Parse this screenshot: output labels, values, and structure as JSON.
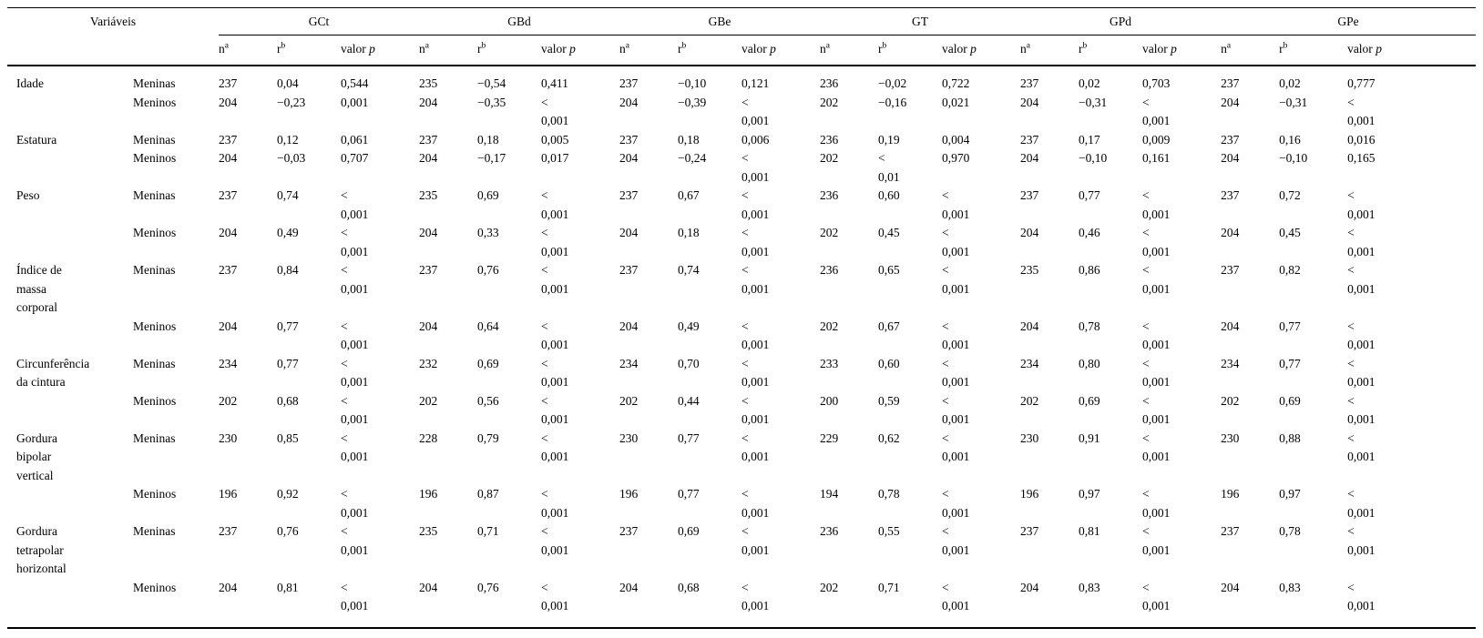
{
  "page": {
    "background_color": "#ffffff",
    "text_color": "#000000",
    "rule_color": "#000000"
  },
  "table": {
    "variables_header": "Variáveis",
    "groups": [
      "GCt",
      "GBd",
      "GBe",
      "GT",
      "GPd",
      "GPe"
    ],
    "subheaders": {
      "n_base": "n",
      "n_sup": "a",
      "r_base": "r",
      "r_sup": "b",
      "p_prefix": "valor",
      "p_symbol": "p"
    },
    "sex_labels": [
      "Meninas",
      "Meninos"
    ],
    "rows": [
      {
        "variable": "Idade",
        "sex": "Meninas",
        "cells": [
          "237",
          "0,04",
          "0,544",
          "235",
          "−0,54",
          "0,411",
          "237",
          "−0,10",
          "0,121",
          "236",
          "−0,02",
          "0,722",
          "237",
          "0,02",
          "0,703",
          "237",
          "0,02",
          "0,777"
        ]
      },
      {
        "variable": "",
        "sex": "Meninos",
        "cells": [
          "204",
          "−0,23",
          "0,001",
          "204",
          "−0,35",
          "<\n0,001",
          "204",
          "−0,39",
          "<\n0,001",
          "202",
          "−0,16",
          "0,021",
          "204",
          "−0,31",
          "<\n0,001",
          "204",
          "−0,31",
          "<\n0,001"
        ]
      },
      {
        "variable": "Estatura",
        "sex": "Meninas",
        "cells": [
          "237",
          "0,12",
          "0,061",
          "237",
          "0,18",
          "0,005",
          "237",
          "0,18",
          "0,006",
          "236",
          "0,19",
          "0,004",
          "237",
          "0,17",
          "0,009",
          "237",
          "0,16",
          "0,016"
        ]
      },
      {
        "variable": "",
        "sex": "Meninos",
        "cells": [
          "204",
          "−0,03",
          "0,707",
          "204",
          "−0,17",
          "0,017",
          "204",
          "−0,24",
          "<\n0,001",
          "202",
          "<\n0,01",
          "0,970",
          "204",
          "−0,10",
          "0,161",
          "204",
          "−0,10",
          "0,165"
        ]
      },
      {
        "variable": "Peso",
        "sex": "Meninas",
        "cells": [
          "237",
          "0,74",
          "<\n0,001",
          "235",
          "0,69",
          "<\n0,001",
          "237",
          "0,67",
          "<\n0,001",
          "236",
          "0,60",
          "<\n0,001",
          "237",
          "0,77",
          "<\n0,001",
          "237",
          "0,72",
          "<\n0,001"
        ]
      },
      {
        "variable": "",
        "sex": "Meninos",
        "cells": [
          "204",
          "0,49",
          "<\n0,001",
          "204",
          "0,33",
          "<\n0,001",
          "204",
          "0,18",
          "<\n0,001",
          "202",
          "0,45",
          "<\n0,001",
          "204",
          "0,46",
          "<\n0,001",
          "204",
          "0,45",
          "<\n0,001"
        ]
      },
      {
        "variable": "Índice de\nmassa\ncorporal",
        "sex": "Meninas",
        "cells": [
          "237",
          "0,84",
          "<\n0,001",
          "237",
          "0,76",
          "<\n0,001",
          "237",
          "0,74",
          "<\n0,001",
          "236",
          "0,65",
          "<\n0,001",
          "235",
          "0,86",
          "<\n0,001",
          "237",
          "0,82",
          "<\n0,001"
        ]
      },
      {
        "variable": "",
        "sex": "Meninos",
        "cells": [
          "204",
          "0,77",
          "<\n0,001",
          "204",
          "0,64",
          "<\n0,001",
          "204",
          "0,49",
          "<\n0,001",
          "202",
          "0,67",
          "<\n0,001",
          "204",
          "0,78",
          "<\n0,001",
          "204",
          "0,77",
          "<\n0,001"
        ]
      },
      {
        "variable": "Circunferência\nda cintura",
        "sex": "Meninas",
        "cells": [
          "234",
          "0,77",
          "<\n0,001",
          "232",
          "0,69",
          "<\n0,001",
          "234",
          "0,70",
          "<\n0,001",
          "233",
          "0,60",
          "<\n0,001",
          "234",
          "0,80",
          "<\n0,001",
          "234",
          "0,77",
          "<\n0,001"
        ]
      },
      {
        "variable": "",
        "sex": "Meninos",
        "cells": [
          "202",
          "0,68",
          "<\n0,001",
          "202",
          "0,56",
          "<\n0,001",
          "202",
          "0,44",
          "<\n0,001",
          "200",
          "0,59",
          "<\n0,001",
          "202",
          "0,69",
          "<\n0,001",
          "202",
          "0,69",
          "<\n0,001"
        ]
      },
      {
        "variable": "Gordura\nbipolar\nvertical",
        "sex": "Meninas",
        "cells": [
          "230",
          "0,85",
          "<\n0,001",
          "228",
          "0,79",
          "<\n0,001",
          "230",
          "0,77",
          "<\n0,001",
          "229",
          "0,62",
          "<\n0,001",
          "230",
          "0,91",
          "<\n0,001",
          "230",
          "0,88",
          "<\n0,001"
        ]
      },
      {
        "variable": "",
        "sex": "Meninos",
        "cells": [
          "196",
          "0,92",
          "<\n0,001",
          "196",
          "0,87",
          "<\n0,001",
          "196",
          "0,77",
          "<\n0,001",
          "194",
          "0,78",
          "<\n0,001",
          "196",
          "0,97",
          "<\n0,001",
          "196",
          "0,97",
          "<\n0,001"
        ]
      },
      {
        "variable": "Gordura\ntetrapolar\nhorizontal",
        "sex": "Meninas",
        "cells": [
          "237",
          "0,76",
          "<\n0,001",
          "235",
          "0,71",
          "<\n0,001",
          "237",
          "0,69",
          "<\n0,001",
          "236",
          "0,55",
          "<\n0,001",
          "237",
          "0,81",
          "<\n0,001",
          "237",
          "0,78",
          "<\n0,001"
        ]
      },
      {
        "variable": "",
        "sex": "Meninos",
        "cells": [
          "204",
          "0,81",
          "<\n0,001",
          "204",
          "0,76",
          "<\n0,001",
          "204",
          "0,68",
          "<\n0,001",
          "202",
          "0,71",
          "<\n0,001",
          "204",
          "0,83",
          "<\n0,001",
          "204",
          "0,83",
          "<\n0,001"
        ]
      }
    ]
  }
}
